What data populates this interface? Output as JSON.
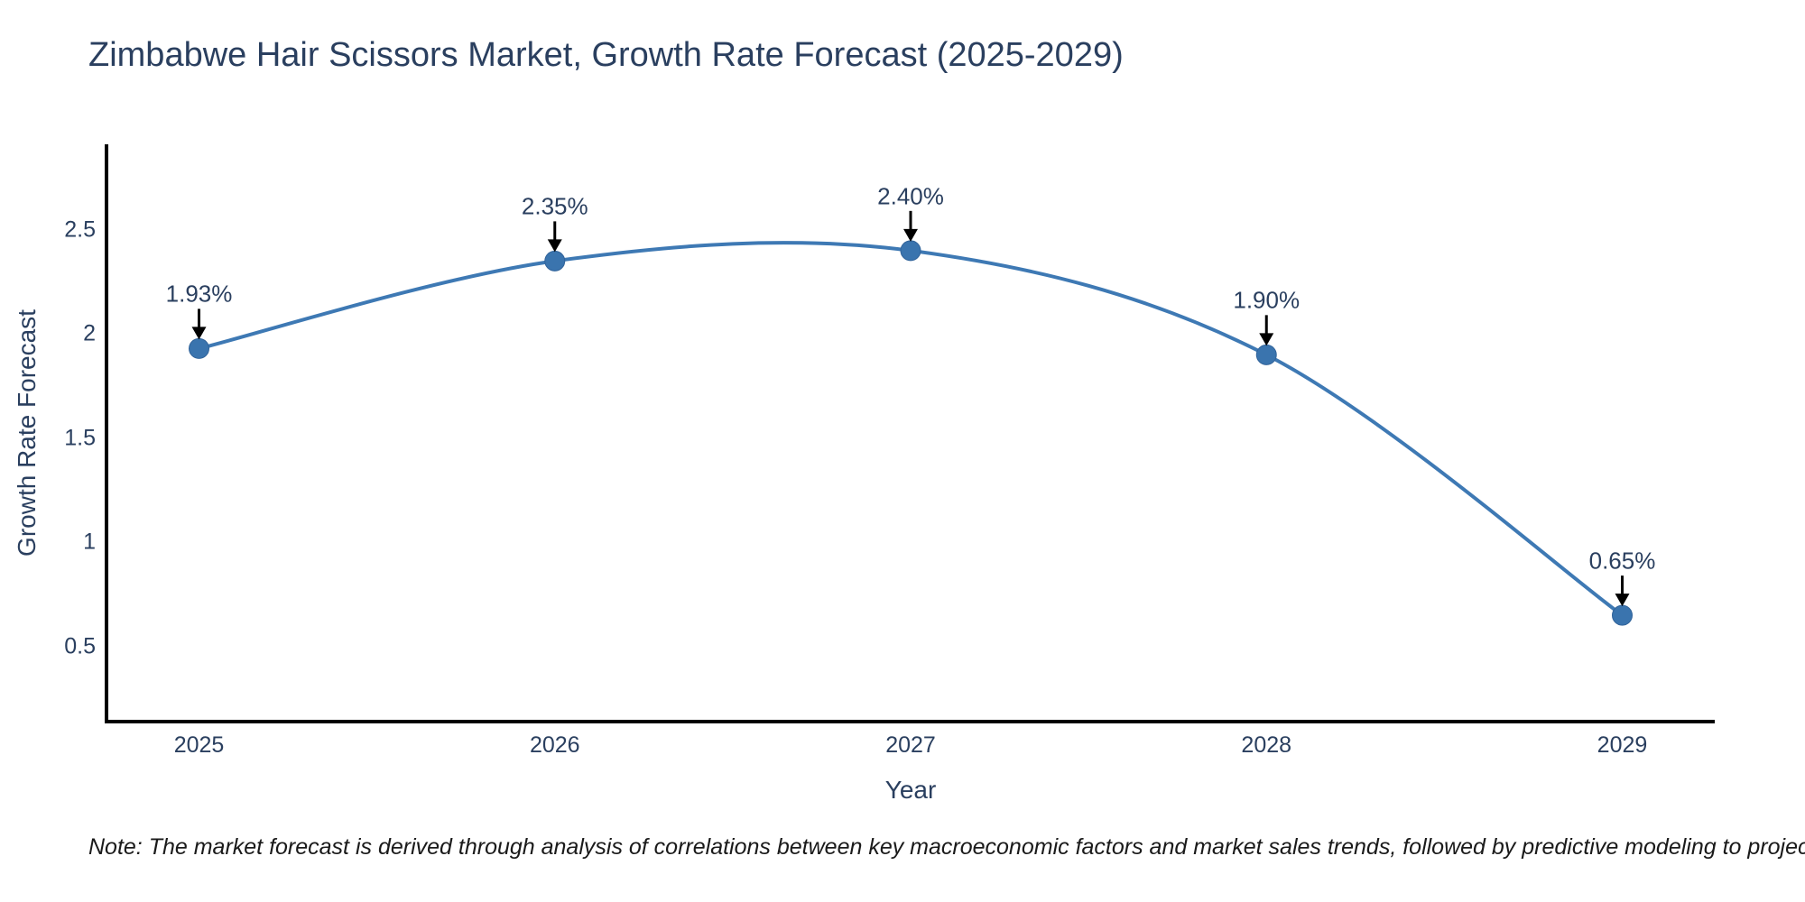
{
  "chart_data": {
    "type": "line",
    "title": "Zimbabwe Hair Scissors Market, Growth Rate Forecast (2025-2029)",
    "xlabel": "Year",
    "ylabel": "Growth Rate Forecast",
    "x": [
      2025,
      2026,
      2027,
      2028,
      2029
    ],
    "values": [
      1.93,
      2.35,
      2.4,
      1.9,
      0.65
    ],
    "point_labels": [
      "1.93%",
      "2.35%",
      "2.40%",
      "1.90%",
      "0.65%"
    ],
    "x_tick_labels": [
      "2025",
      "2026",
      "2027",
      "2028",
      "2029"
    ],
    "y_ticks": [
      0.5,
      1,
      1.5,
      2,
      2.5
    ],
    "y_tick_labels": [
      "0.5",
      "1",
      "1.5",
      "2",
      "2.5"
    ],
    "xlim": [
      2024.74,
      2029.26
    ],
    "ylim": [
      0.14,
      2.91
    ],
    "line_shape": "spline",
    "grid": false,
    "legend_position": "none",
    "line_color": "#3e79b4",
    "marker_color": "#3a74ae",
    "marker_edge_color": "#31639a",
    "arrow_color": "#000000",
    "axis_color": "#000000",
    "text_color": "#2a3f5f",
    "note": "Note: The market forecast is derived through analysis of correlations between key macroeconomic factors and market sales trends, followed by predictive modeling to project future sales"
  }
}
